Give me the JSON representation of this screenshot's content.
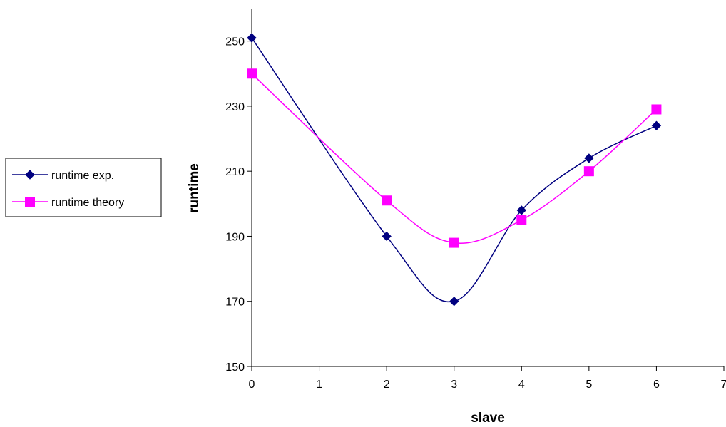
{
  "chart_data": {
    "type": "line",
    "xlabel": "slave",
    "ylabel": "runtime",
    "xlim": [
      0,
      7
    ],
    "ylim": [
      150,
      260
    ],
    "xticks": [
      0,
      1,
      2,
      3,
      4,
      5,
      6,
      7
    ],
    "yticks": [
      150,
      170,
      190,
      210,
      230,
      250
    ],
    "smoothed": true,
    "grid": false,
    "legend_position": "left",
    "series": [
      {
        "name": "runtime exp.",
        "color": "#000080",
        "marker": "diamond",
        "x": [
          0,
          2,
          3,
          4,
          5,
          6
        ],
        "y": [
          251,
          190,
          170,
          198,
          214,
          224
        ]
      },
      {
        "name": "runtime theory",
        "color": "#ff00ff",
        "marker": "square",
        "x": [
          0,
          2,
          3,
          4,
          5,
          6
        ],
        "y": [
          240,
          201,
          188,
          195,
          210,
          229
        ]
      }
    ]
  }
}
